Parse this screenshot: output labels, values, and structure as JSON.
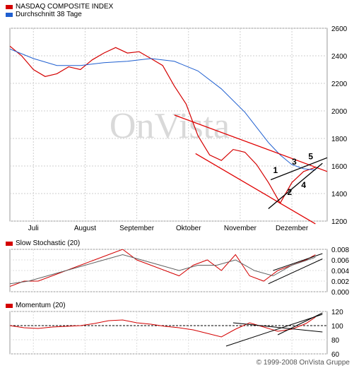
{
  "legend": [
    {
      "label": "NASDAQ COMPOSITE INDEX",
      "color": "#d40000"
    },
    {
      "label": "Durchschnitt 38 Tage",
      "color": "#1f5fd0"
    }
  ],
  "watermark": "OnVista",
  "copyright": "© 1999-2008 OnVista Gruppe",
  "chart_data": [
    {
      "type": "line",
      "series": [
        {
          "name": "NASDAQ COMPOSITE INDEX",
          "color": "#d40000",
          "x": [
            0,
            5,
            10,
            15,
            20,
            25,
            30,
            35,
            40,
            45,
            50,
            55,
            60,
            65,
            70,
            75,
            80,
            85,
            90,
            95,
            100,
            105,
            110,
            115,
            120,
            125,
            130
          ],
          "values": [
            2470,
            2400,
            2300,
            2250,
            2270,
            2320,
            2300,
            2370,
            2420,
            2460,
            2420,
            2430,
            2380,
            2330,
            2180,
            2050,
            1820,
            1680,
            1640,
            1720,
            1700,
            1610,
            1480,
            1330,
            1480,
            1560,
            1590
          ]
        },
        {
          "name": "Durchschnitt 38 Tage",
          "color": "#1f5fd0",
          "x": [
            0,
            10,
            20,
            30,
            40,
            50,
            60,
            70,
            80,
            90,
            100,
            110,
            115,
            120,
            125,
            130
          ],
          "values": [
            2450,
            2380,
            2330,
            2330,
            2350,
            2360,
            2380,
            2360,
            2290,
            2160,
            1990,
            1770,
            1680,
            1610,
            1580,
            1570
          ]
        }
      ],
      "trendlines": [
        {
          "from": [
            70,
            1970
          ],
          "to": [
            135,
            1560
          ],
          "color": "#e00000"
        },
        {
          "from": [
            79,
            1690
          ],
          "to": [
            130,
            1180
          ],
          "color": "#e00000"
        },
        {
          "from": [
            110,
            1290
          ],
          "to": [
            133,
            1620
          ],
          "color": "#000000"
        },
        {
          "from": [
            111,
            1500
          ],
          "to": [
            135,
            1660
          ],
          "color": "#000000"
        }
      ],
      "annotations": [
        {
          "text": "1",
          "x": 113,
          "y": 1550
        },
        {
          "text": "2",
          "x": 119,
          "y": 1390
        },
        {
          "text": "3",
          "x": 121,
          "y": 1610
        },
        {
          "text": "4",
          "x": 125,
          "y": 1440
        },
        {
          "text": "5",
          "x": 128,
          "y": 1650
        }
      ],
      "x_tick_labels": [
        "Juli",
        "August",
        "September",
        "Oktober",
        "November",
        "Dezember"
      ],
      "x_tick_positions": [
        10,
        32,
        54,
        76,
        98,
        120
      ],
      "ylim": [
        1200,
        2600
      ],
      "y_ticks": [
        "1200",
        "1400",
        "1600",
        "1800",
        "2000",
        "2200",
        "2400",
        "2600"
      ],
      "grid": true
    },
    {
      "type": "line",
      "title": "Slow Stochastic (20)",
      "series": [
        {
          "color": "#d40000",
          "x": [
            0,
            6,
            12,
            18,
            24,
            30,
            36,
            42,
            48,
            54,
            60,
            66,
            72,
            78,
            84,
            90,
            96,
            102,
            108,
            114,
            120,
            126,
            130
          ],
          "values": [
            0.001,
            0.002,
            0.002,
            0.003,
            0.004,
            0.005,
            0.006,
            0.007,
            0.008,
            0.006,
            0.005,
            0.004,
            0.003,
            0.005,
            0.006,
            0.004,
            0.007,
            0.003,
            0.002,
            0.004,
            0.005,
            0.006,
            0.007
          ]
        },
        {
          "color": "#606060",
          "x": [
            0,
            8,
            16,
            24,
            32,
            40,
            48,
            56,
            64,
            72,
            80,
            88,
            96,
            104,
            112,
            120,
            130
          ],
          "values": [
            0.0015,
            0.002,
            0.003,
            0.004,
            0.005,
            0.006,
            0.007,
            0.006,
            0.005,
            0.004,
            0.005,
            0.005,
            0.006,
            0.004,
            0.003,
            0.005,
            0.0065
          ]
        }
      ],
      "ylim": [
        0,
        0.008
      ],
      "y_ticks": [
        "0.000",
        "0.002",
        "0.004",
        "0.006",
        "0.008"
      ],
      "trendlines": [
        {
          "from": [
            110,
            0.0015
          ],
          "to": [
            133,
            0.0062
          ]
        },
        {
          "from": [
            112,
            0.004
          ],
          "to": [
            133,
            0.0072
          ]
        }
      ]
    },
    {
      "type": "line",
      "title": "Momentum (20)",
      "series": [
        {
          "color": "#d40000",
          "x": [
            0,
            6,
            12,
            18,
            24,
            30,
            36,
            42,
            48,
            54,
            60,
            66,
            72,
            78,
            84,
            90,
            96,
            102,
            108,
            114,
            120,
            126,
            130
          ],
          "values": [
            100,
            97,
            96,
            98,
            99,
            100,
            103,
            107,
            108,
            104,
            102,
            99,
            97,
            94,
            89,
            84,
            95,
            104,
            98,
            92,
            95,
            103,
            112
          ]
        }
      ],
      "reference_line": 100,
      "ylim": [
        60,
        120
      ],
      "y_ticks": [
        "60",
        "80",
        "100",
        "120"
      ],
      "trendlines": [
        {
          "from": [
            95,
            104
          ],
          "to": [
            133,
            91
          ]
        },
        {
          "from": [
            92,
            71
          ],
          "to": [
            133,
            116
          ]
        },
        {
          "from": [
            114,
            87
          ],
          "to": [
            133,
            118
          ]
        }
      ]
    }
  ]
}
